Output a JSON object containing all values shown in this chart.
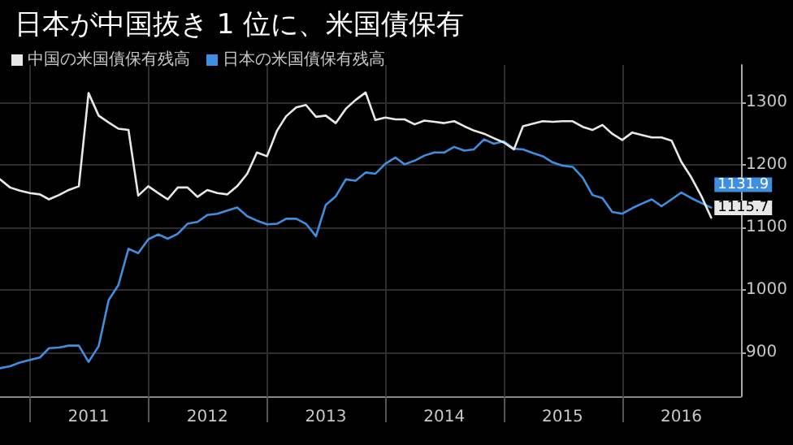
{
  "chart_data": {
    "type": "line",
    "title": "日本が中国抜き 1 位に、米国債保有",
    "x": [
      "2010-10",
      "2010-11",
      "2010-12",
      "2011-01",
      "2011-02",
      "2011-03",
      "2011-04",
      "2011-05",
      "2011-06",
      "2011-07",
      "2011-08",
      "2011-09",
      "2011-10",
      "2011-11",
      "2011-12",
      "2012-01",
      "2012-02",
      "2012-03",
      "2012-04",
      "2012-05",
      "2012-06",
      "2012-07",
      "2012-08",
      "2012-09",
      "2012-10",
      "2012-11",
      "2012-12",
      "2013-01",
      "2013-02",
      "2013-03",
      "2013-04",
      "2013-05",
      "2013-06",
      "2013-07",
      "2013-08",
      "2013-09",
      "2013-10",
      "2013-11",
      "2013-12",
      "2014-01",
      "2014-02",
      "2014-03",
      "2014-04",
      "2014-05",
      "2014-06",
      "2014-07",
      "2014-08",
      "2014-09",
      "2014-10",
      "2014-11",
      "2014-12",
      "2015-01",
      "2015-02",
      "2015-03",
      "2015-04",
      "2015-05",
      "2015-06",
      "2015-07",
      "2015-08",
      "2015-09",
      "2015-10",
      "2015-11",
      "2015-12",
      "2016-01",
      "2016-02",
      "2016-03",
      "2016-04",
      "2016-05",
      "2016-06",
      "2016-07",
      "2016-08",
      "2016-09",
      "2016-10"
    ],
    "series": [
      {
        "name": "中国の米国債保有残高",
        "color": "#e8e8e8",
        "values": [
          1177,
          1164,
          1159,
          1155,
          1153,
          1145,
          1152,
          1160,
          1166,
          1315,
          1279,
          1268,
          1258,
          1256,
          1151,
          1166,
          1155,
          1145,
          1164,
          1164,
          1149,
          1160,
          1155,
          1153,
          1166,
          1186,
          1220,
          1214,
          1255,
          1278,
          1292,
          1296,
          1277,
          1279,
          1267,
          1290,
          1304,
          1316,
          1272,
          1276,
          1273,
          1273,
          1265,
          1271,
          1269,
          1267,
          1270,
          1262,
          1255,
          1250,
          1243,
          1236,
          1225,
          1262,
          1266,
          1270,
          1269,
          1270,
          1270,
          1261,
          1256,
          1264,
          1250,
          1240,
          1252,
          1248,
          1244,
          1244,
          1239,
          1205,
          1180,
          1150,
          1115.7
        ],
        "value_labels": [
          null,
          null,
          null,
          null,
          null,
          null,
          null,
          null,
          null,
          null,
          null,
          null,
          null,
          null,
          null,
          null,
          null,
          null,
          null,
          null,
          null,
          null,
          null,
          null,
          null,
          null,
          null,
          null,
          null,
          null,
          null,
          null,
          null,
          null,
          null,
          null,
          null,
          null,
          null,
          null,
          null,
          null,
          null,
          null,
          null,
          null,
          null,
          null,
          null,
          null,
          null,
          null,
          null,
          null,
          null,
          null,
          null,
          null,
          null,
          null,
          null,
          null,
          null,
          null,
          null,
          null,
          null,
          null,
          null,
          null,
          null,
          null,
          "1115.7"
        ]
      },
      {
        "name": "日本の米国債保有残高",
        "color": "#3f8fe0",
        "values": [
          875,
          878,
          884,
          888,
          892,
          907,
          908,
          911,
          911,
          885,
          910,
          984,
          1008,
          1066,
          1059,
          1081,
          1089,
          1082,
          1090,
          1106,
          1109,
          1120,
          1122,
          1127,
          1132,
          1118,
          1111,
          1105,
          1106,
          1114,
          1114,
          1106,
          1086,
          1136,
          1150,
          1177,
          1175,
          1188,
          1186,
          1202,
          1212,
          1201,
          1207,
          1215,
          1220,
          1220,
          1229,
          1223,
          1225,
          1241,
          1234,
          1238,
          1226,
          1225,
          1219,
          1214,
          1204,
          1199,
          1197,
          1180,
          1152,
          1147,
          1125,
          1122,
          1131,
          1138,
          1145,
          1134,
          1145,
          1156,
          1147,
          1139,
          1131.9
        ],
        "value_labels": [
          null,
          null,
          null,
          null,
          null,
          null,
          null,
          null,
          null,
          null,
          null,
          null,
          null,
          null,
          null,
          null,
          null,
          null,
          null,
          null,
          null,
          null,
          null,
          null,
          null,
          null,
          null,
          null,
          null,
          null,
          null,
          null,
          null,
          null,
          null,
          null,
          null,
          null,
          null,
          null,
          null,
          null,
          null,
          null,
          null,
          null,
          null,
          null,
          null,
          null,
          null,
          null,
          null,
          null,
          null,
          null,
          null,
          null,
          null,
          null,
          null,
          null,
          null,
          null,
          null,
          null,
          null,
          null,
          null,
          null,
          null,
          null,
          "1131.9"
        ]
      }
    ],
    "xlim": [
      "2010-10",
      "2017-01"
    ],
    "xticks": [
      {
        "value": "2011-01",
        "label": null
      },
      {
        "value": "2011-07",
        "label": "2011"
      },
      {
        "value": "2012-01",
        "label": null
      },
      {
        "value": "2012-07",
        "label": "2012"
      },
      {
        "value": "2013-01",
        "label": null
      },
      {
        "value": "2013-07",
        "label": "2013"
      },
      {
        "value": "2014-01",
        "label": null
      },
      {
        "value": "2014-07",
        "label": "2014"
      },
      {
        "value": "2015-01",
        "label": null
      },
      {
        "value": "2015-07",
        "label": "2015"
      },
      {
        "value": "2016-01",
        "label": null
      },
      {
        "value": "2016-07",
        "label": "2016"
      }
    ],
    "ylim": [
      830,
      1360
    ],
    "yticks": [
      900,
      1000,
      1100,
      1200,
      1300
    ],
    "grid": true,
    "legend": "top left",
    "marker": "none",
    "line_style": "solid"
  }
}
